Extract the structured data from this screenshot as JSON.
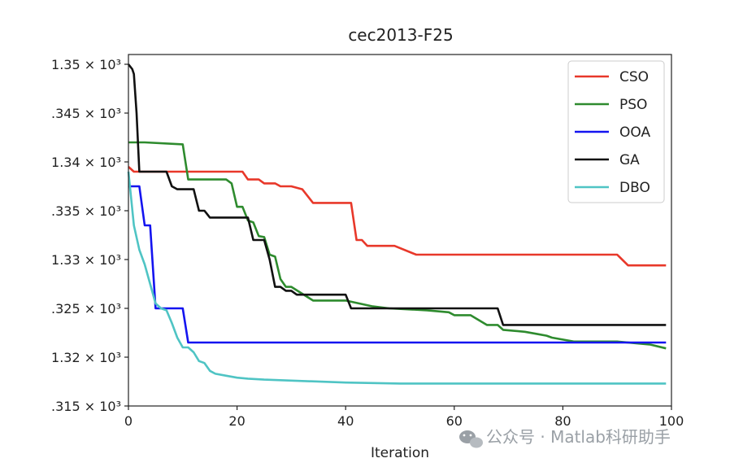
{
  "chart_data": {
    "type": "line",
    "title": "cec2013-F25",
    "xlabel": "Iteration",
    "ylabel": "",
    "xlim": [
      0,
      100
    ],
    "ylim": [
      1315,
      1351
    ],
    "xticks": [
      0,
      20,
      40,
      60,
      80,
      100
    ],
    "xtick_labels": [
      "0",
      "20",
      "40",
      "60",
      "80",
      "100"
    ],
    "yticks": [
      1315,
      1320,
      1325,
      1330,
      1335,
      1340,
      1345,
      1350
    ],
    "ytick_labels": [
      ".315 × 10³",
      "1.32 × 10³",
      ".325 × 10³",
      "1.33 × 10³",
      ".335 × 10³",
      "1.34 × 10³",
      ".345 × 10³",
      "1.35 × 10³"
    ],
    "legend_position": "top-right",
    "grid": false,
    "series": [
      {
        "name": "CSO",
        "color": "#e8382a",
        "x": [
          0,
          1,
          21,
          22,
          24,
          25,
          27,
          28,
          30,
          32,
          34,
          41,
          42,
          43,
          44,
          49,
          53,
          60,
          70,
          80,
          90,
          92,
          93,
          99
        ],
        "y": [
          1339.5,
          1339.0,
          1339.0,
          1338.2,
          1338.2,
          1337.8,
          1337.8,
          1337.5,
          1337.5,
          1337.2,
          1335.8,
          1335.8,
          1332.0,
          1332.0,
          1331.4,
          1331.4,
          1330.5,
          1330.5,
          1330.5,
          1330.5,
          1330.5,
          1329.4,
          1329.4,
          1329.4
        ]
      },
      {
        "name": "PSO",
        "color": "#2e8b2e",
        "x": [
          0,
          3,
          10,
          11,
          18,
          19,
          20,
          21,
          22,
          23,
          24,
          25,
          26,
          27,
          28,
          29,
          30,
          34,
          35,
          40,
          45,
          48,
          55,
          59,
          60,
          63,
          66,
          68,
          69,
          73,
          75,
          77,
          78,
          80,
          82,
          90,
          96,
          99
        ],
        "y": [
          1342.0,
          1342.0,
          1341.8,
          1338.2,
          1338.2,
          1337.8,
          1335.4,
          1335.4,
          1334.0,
          1333.8,
          1332.4,
          1332.3,
          1330.5,
          1330.3,
          1328.0,
          1327.2,
          1327.2,
          1325.8,
          1325.8,
          1325.8,
          1325.2,
          1325.0,
          1324.8,
          1324.6,
          1324.3,
          1324.3,
          1323.3,
          1323.3,
          1322.8,
          1322.6,
          1322.4,
          1322.2,
          1322.0,
          1321.8,
          1321.6,
          1321.6,
          1321.3,
          1320.9
        ]
      },
      {
        "name": "OOA",
        "color": "#1414f0",
        "x": [
          0,
          2,
          3,
          4,
          5,
          6,
          8,
          10,
          11,
          20,
          40,
          60,
          80,
          99
        ],
        "y": [
          1337.5,
          1337.5,
          1333.5,
          1333.5,
          1325.0,
          1325.0,
          1325.0,
          1325.0,
          1321.5,
          1321.5,
          1321.5,
          1321.5,
          1321.5,
          1321.5
        ]
      },
      {
        "name": "GA",
        "color": "#111111",
        "x": [
          0,
          0.7,
          1,
          1.5,
          2,
          7,
          8,
          9,
          12,
          13,
          14,
          15,
          20,
          22,
          23,
          25,
          26,
          27,
          28,
          29,
          30,
          31,
          40,
          41,
          68,
          69,
          80,
          99
        ],
        "y": [
          1350.0,
          1349.5,
          1349.0,
          1345.0,
          1339.0,
          1339.0,
          1337.5,
          1337.2,
          1337.2,
          1335.0,
          1335.0,
          1334.3,
          1334.3,
          1334.3,
          1332.0,
          1332.0,
          1330.0,
          1327.2,
          1327.2,
          1326.8,
          1326.8,
          1326.4,
          1326.4,
          1325.0,
          1325.0,
          1323.3,
          1323.3,
          1323.3
        ]
      },
      {
        "name": "DBO",
        "color": "#4fc4c4",
        "x": [
          0,
          1,
          2,
          3,
          4,
          5,
          6,
          7,
          8,
          9,
          10,
          11,
          12,
          13,
          14,
          15,
          16,
          18,
          20,
          22,
          25,
          30,
          40,
          50,
          60,
          70,
          80,
          90,
          99
        ],
        "y": [
          1339.0,
          1333.5,
          1331.0,
          1329.5,
          1327.5,
          1325.5,
          1325.0,
          1324.8,
          1323.5,
          1322.0,
          1321.0,
          1321.0,
          1320.5,
          1319.6,
          1319.4,
          1318.6,
          1318.3,
          1318.1,
          1317.9,
          1317.8,
          1317.7,
          1317.6,
          1317.4,
          1317.3,
          1317.3,
          1317.3,
          1317.3,
          1317.3,
          1317.3
        ]
      }
    ]
  },
  "watermark": {
    "text": "公众号 · Matlab科研助手"
  }
}
